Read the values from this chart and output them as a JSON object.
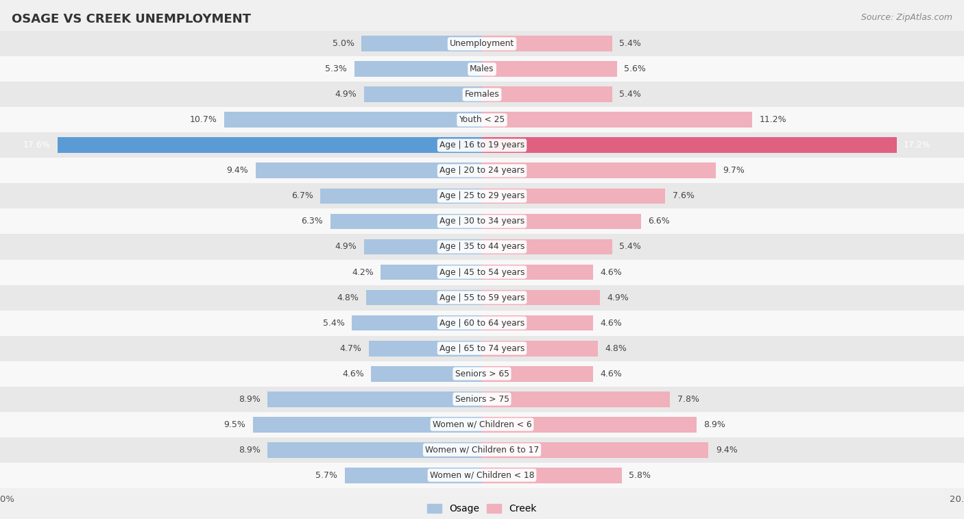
{
  "title": "OSAGE VS CREEK UNEMPLOYMENT",
  "source": "Source: ZipAtlas.com",
  "categories": [
    "Unemployment",
    "Males",
    "Females",
    "Youth < 25",
    "Age | 16 to 19 years",
    "Age | 20 to 24 years",
    "Age | 25 to 29 years",
    "Age | 30 to 34 years",
    "Age | 35 to 44 years",
    "Age | 45 to 54 years",
    "Age | 55 to 59 years",
    "Age | 60 to 64 years",
    "Age | 65 to 74 years",
    "Seniors > 65",
    "Seniors > 75",
    "Women w/ Children < 6",
    "Women w/ Children 6 to 17",
    "Women w/ Children < 18"
  ],
  "osage": [
    5.0,
    5.3,
    4.9,
    10.7,
    17.6,
    9.4,
    6.7,
    6.3,
    4.9,
    4.2,
    4.8,
    5.4,
    4.7,
    4.6,
    8.9,
    9.5,
    8.9,
    5.7
  ],
  "creek": [
    5.4,
    5.6,
    5.4,
    11.2,
    17.2,
    9.7,
    7.6,
    6.6,
    5.4,
    4.6,
    4.9,
    4.6,
    4.8,
    4.6,
    7.8,
    8.9,
    9.4,
    5.8
  ],
  "osage_color": "#a8c4e0",
  "creek_color": "#f0b0bc",
  "osage_highlight_color": "#5b9bd5",
  "creek_highlight_color": "#e06080",
  "highlight_index": 4,
  "background_color": "#f0f0f0",
  "row_even_color": "#e8e8e8",
  "row_odd_color": "#f8f8f8",
  "axis_limit": 20.0,
  "label_color": "#444444",
  "title_fontsize": 13,
  "source_fontsize": 9,
  "bar_height": 0.62,
  "legend_osage": "Osage",
  "legend_creek": "Creek"
}
